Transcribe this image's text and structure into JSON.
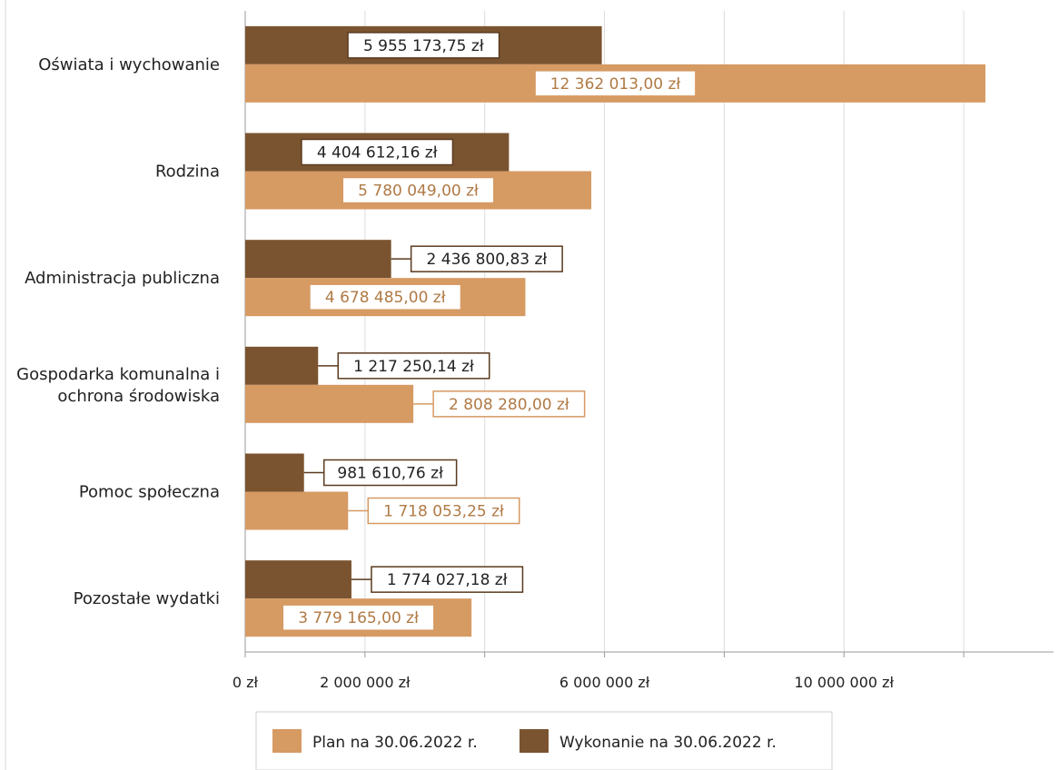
{
  "chart_data": {
    "type": "bar",
    "orientation": "horizontal",
    "title": "",
    "xlabel": "",
    "ylabel": "",
    "categories": [
      [
        "Oświata i wychowanie"
      ],
      [
        "Rodzina"
      ],
      [
        "Administracja publiczna"
      ],
      [
        "Gospodarka komunalna i",
        "ochrona środowiska"
      ],
      [
        "Pomoc społeczna"
      ],
      [
        "Pozostałe wydatki"
      ]
    ],
    "series": [
      {
        "name": "Wykonanie na 30.06.2022 r.",
        "color": "#7a5430",
        "values": [
          5955173.75,
          4404612.16,
          2436800.83,
          1217250.14,
          981610.76,
          1774027.18
        ],
        "labels": [
          "5 955 173,75 zł",
          "4 404 612,16 zł",
          "2 436 800,83 zł",
          "1 217 250,14 zł",
          "981 610,76 zł",
          "1 774 027,18 zł"
        ],
        "label_text_color": "#222222",
        "label_border_color": "#5a3a1e"
      },
      {
        "name": "Plan na 30.06.2022 r.",
        "color": "#d69a63",
        "values": [
          12362013.0,
          5780049.0,
          4678485.0,
          2808280.0,
          1718053.25,
          3779165.0
        ],
        "labels": [
          "12 362 013,00 zł",
          "5 780 049,00 zł",
          "4 678 485,00 zł",
          "2 808 280,00 zł",
          "1 718 053,25 zł",
          "3 779 165,00 zł"
        ],
        "label_text_color": "#b07a45",
        "label_border_color": "#d69a63"
      }
    ],
    "xlim": [
      0,
      13500000
    ],
    "gridline_step": 2000000,
    "ticks": [
      {
        "value": 0,
        "label": "0 zł"
      },
      {
        "value": 2000000,
        "label": "2 000 000 zł"
      },
      {
        "value": 6000000,
        "label": "6 000 000 zł"
      },
      {
        "value": 10000000,
        "label": "10 000 000 zł"
      }
    ],
    "grid": true,
    "legend": {
      "position": "bottom",
      "items": [
        {
          "label": "Plan na 30.06.2022 r.",
          "color": "#d69a63"
        },
        {
          "label": "Wykonanie na 30.06.2022 r.",
          "color": "#7a5430"
        }
      ]
    }
  }
}
